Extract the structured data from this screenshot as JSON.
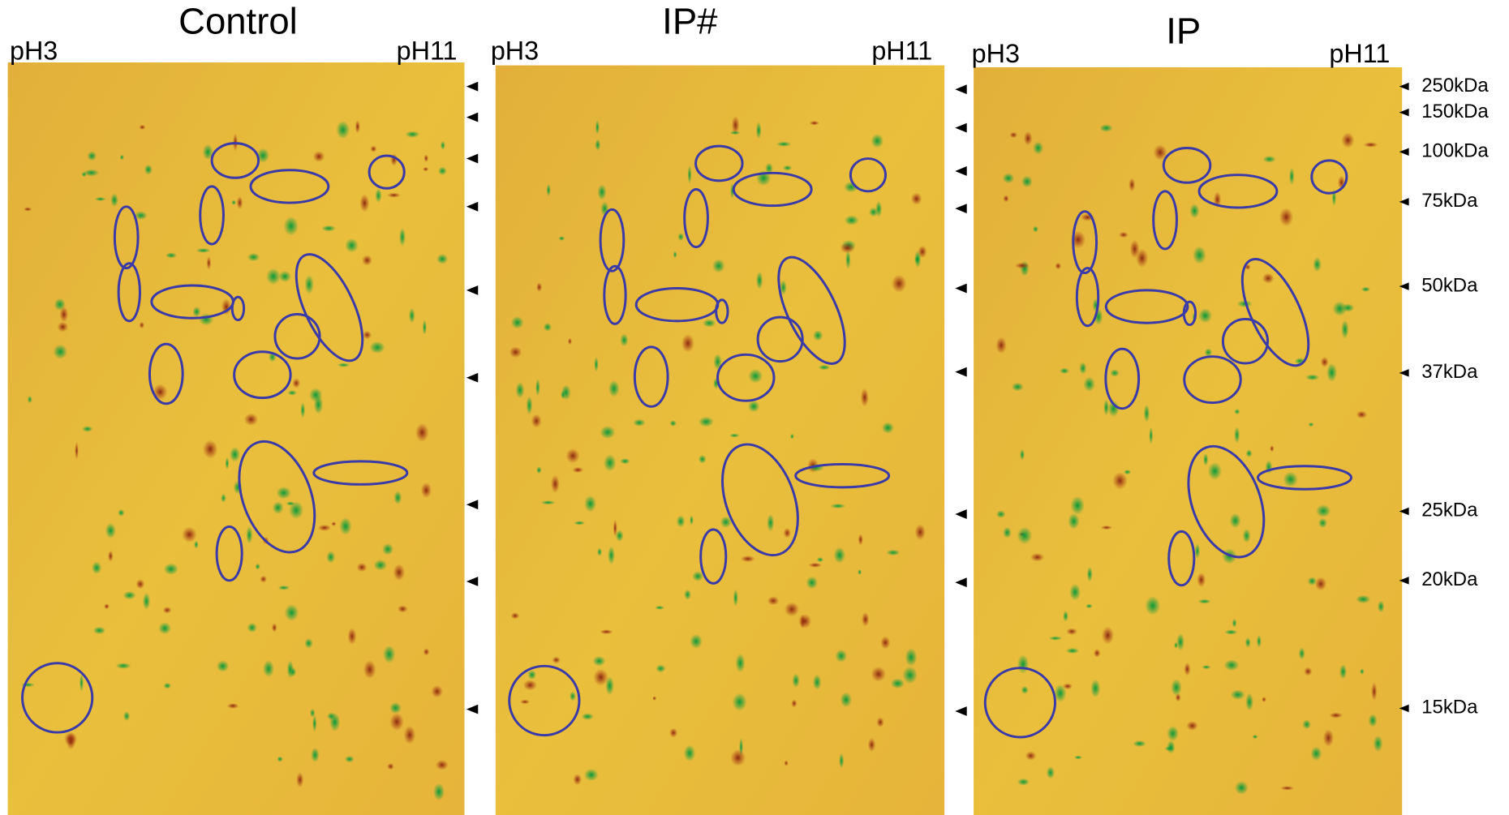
{
  "panels": [
    {
      "title": "Control",
      "ph_left": "pH3",
      "ph_right": "pH11"
    },
    {
      "title": "IP#",
      "ph_left": "pH3",
      "ph_right": "pH11"
    },
    {
      "title": "IP",
      "ph_left": "pH3",
      "ph_right": "pH11"
    }
  ],
  "markers": [
    "250kDa",
    "150kDa",
    "100kDa",
    "75kDa",
    "50kDa",
    "37kDa",
    "25kDa",
    "20kDa",
    "15kDa"
  ]
}
